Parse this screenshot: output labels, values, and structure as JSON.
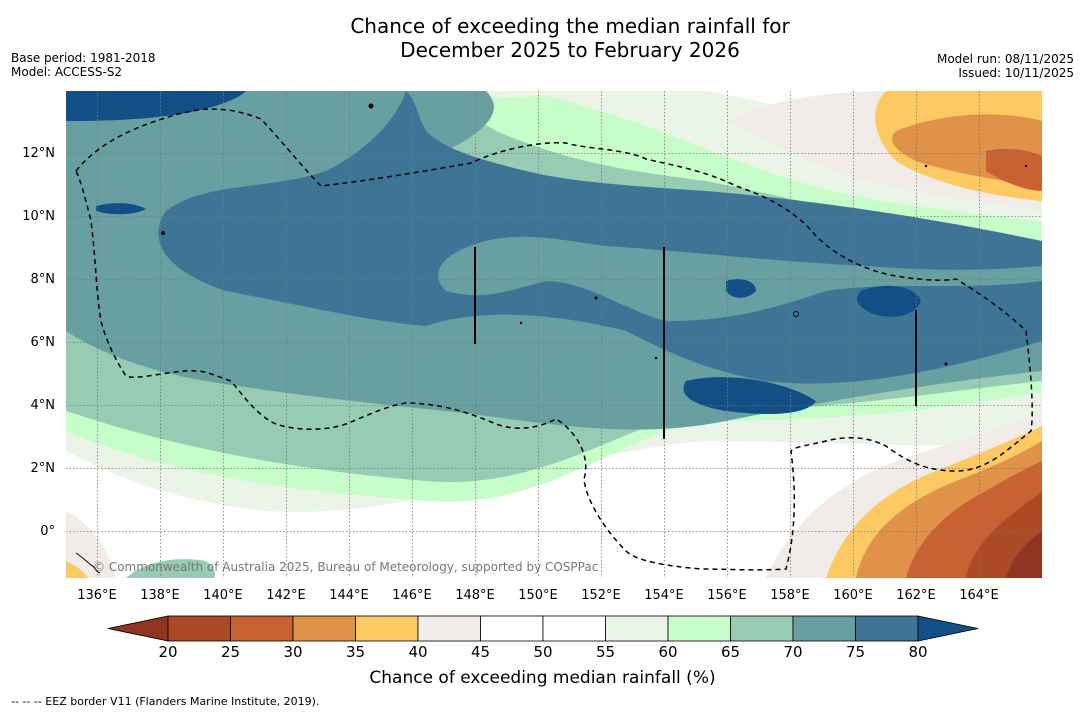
{
  "title": {
    "line1": "Chance of exceeding the median rainfall for",
    "line2": "December 2025 to February 2026"
  },
  "meta_left": {
    "base_period": "Base period: 1981-2018",
    "model": "Model: ACCESS-S2"
  },
  "meta_right": {
    "model_run": "Model run: 08/11/2025",
    "issued": "Issued: 10/11/2025"
  },
  "map": {
    "lat_labels": [
      "12°N",
      "10°N",
      "8°N",
      "6°N",
      "4°N",
      "2°N",
      "0°"
    ],
    "lon_labels": [
      "136°E",
      "138°E",
      "140°E",
      "142°E",
      "144°E",
      "146°E",
      "148°E",
      "150°E",
      "152°E",
      "154°E",
      "156°E",
      "158°E",
      "160°E",
      "162°E",
      "164°E"
    ],
    "copyright": "© Commonwealth of Australia 2025, Bureau of Meteorology, supported by COSPPac"
  },
  "colorbar": {
    "ticks": [
      "20",
      "25",
      "30",
      "35",
      "40",
      "45",
      "50",
      "55",
      "60",
      "65",
      "70",
      "75",
      "80"
    ],
    "colors": [
      "#8e3420",
      "#ad4a26",
      "#c96232",
      "#df9248",
      "#fcc963",
      "#f1ece7",
      "#ffffff",
      "#ffffff",
      "#eaf5e8",
      "#c7fdc8",
      "#97cbb4",
      "#68a0a2",
      "#3e7597",
      "#124f86"
    ],
    "title": "Chance of exceeding median rainfall (%)"
  },
  "footnote": "--  --  -- EEZ border V11 (Flanders Marine Institute, 2019)."
}
